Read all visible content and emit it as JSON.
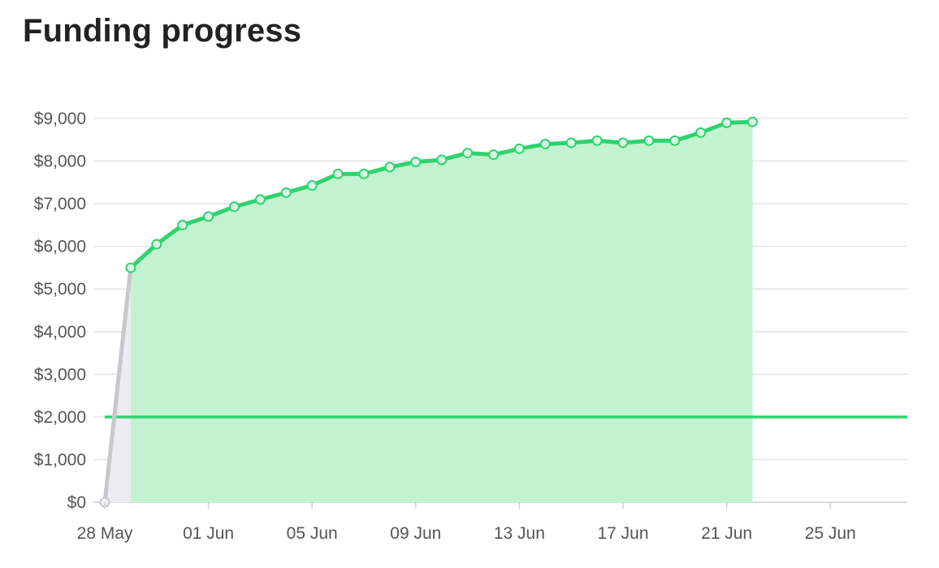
{
  "title": "Funding progress",
  "colors": {
    "accent": "#2fd36e",
    "accent_fill": "#c2f2cf",
    "pre_line": "#c8c8cc",
    "pre_fill": "#ececf0",
    "grid": "#e3e3e3",
    "axis_text": "#555555"
  },
  "chart_data": {
    "type": "line",
    "title": "Funding progress",
    "xlabel": "",
    "ylabel": "",
    "x_axis": {
      "type": "date",
      "range": [
        "2019-05-28",
        "2019-06-28"
      ],
      "ticks": [
        "28 May",
        "01 Jun",
        "05 Jun",
        "09 Jun",
        "13 Jun",
        "17 Jun",
        "21 Jun",
        "25 Jun"
      ],
      "tick_dates": [
        "2019-05-28",
        "2019-06-01",
        "2019-06-05",
        "2019-06-09",
        "2019-06-13",
        "2019-06-17",
        "2019-06-21",
        "2019-06-25"
      ]
    },
    "y_axis": {
      "range": [
        0,
        9000
      ],
      "ticks": [
        "$0",
        "$1,000",
        "$2,000",
        "$3,000",
        "$4,000",
        "$5,000",
        "$6,000",
        "$7,000",
        "$8,000",
        "$9,000"
      ],
      "tick_values": [
        0,
        1000,
        2000,
        3000,
        4000,
        5000,
        6000,
        7000,
        8000,
        9000
      ]
    },
    "grid": true,
    "legend": "none",
    "goal_line": 2000,
    "series": [
      {
        "role": "pre-launch",
        "x": [
          "2019-05-28",
          "2019-05-29"
        ],
        "y": [
          0,
          5500
        ]
      },
      {
        "role": "funding",
        "x": [
          "2019-05-29",
          "2019-05-30",
          "2019-05-31",
          "2019-06-01",
          "2019-06-02",
          "2019-06-03",
          "2019-06-04",
          "2019-06-05",
          "2019-06-06",
          "2019-06-07",
          "2019-06-08",
          "2019-06-09",
          "2019-06-10",
          "2019-06-11",
          "2019-06-12",
          "2019-06-13",
          "2019-06-14",
          "2019-06-15",
          "2019-06-16",
          "2019-06-17",
          "2019-06-18",
          "2019-06-19",
          "2019-06-20",
          "2019-06-21",
          "2019-06-22"
        ],
        "y": [
          5500,
          6050,
          6500,
          6700,
          6930,
          7100,
          7260,
          7430,
          7700,
          7700,
          7860,
          7980,
          8030,
          8190,
          8150,
          8290,
          8400,
          8430,
          8480,
          8430,
          8480,
          8480,
          8670,
          8900,
          8920
        ]
      }
    ]
  }
}
